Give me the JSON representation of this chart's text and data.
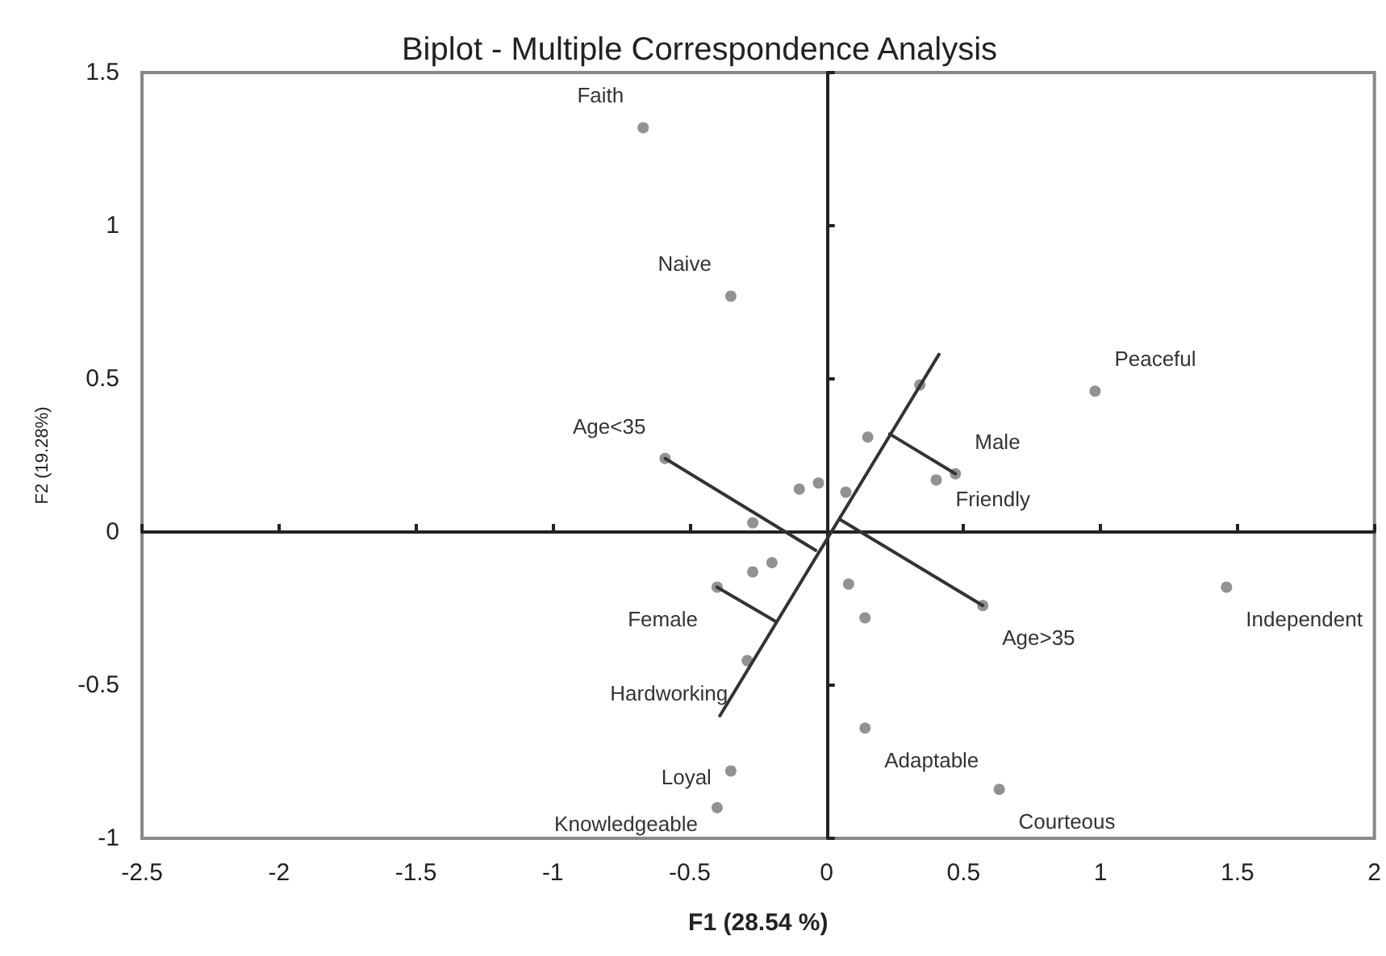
{
  "chart_data": {
    "type": "scatter",
    "title": "Biplot - Multiple Correspondence Analysis",
    "xlabel": "F1 (28.54 %)",
    "ylabel": "F2 (19.28%)",
    "xlim": [
      -2.5,
      2
    ],
    "ylim": [
      -1,
      1.5
    ],
    "xticks": [
      -2.5,
      -2,
      -1.5,
      -1,
      -0.5,
      0,
      0.5,
      1,
      1.5,
      2
    ],
    "yticks": [
      -1,
      -0.5,
      0,
      0.5,
      1,
      1.5
    ],
    "marker": "circle",
    "series": [
      {
        "color": "#777777",
        "x": [
          -0.67,
          -0.35,
          0.98,
          1.46,
          0.34,
          0.15,
          0.47,
          0.4,
          -0.59,
          -0.1,
          -0.03,
          0.07,
          -0.27,
          -0.27,
          -0.2,
          -0.4,
          0.08,
          0.14,
          0.57,
          -0.29,
          0.14,
          -0.35,
          -0.4,
          0.63
        ],
        "values": [
          1.32,
          0.77,
          0.46,
          -0.18,
          0.48,
          0.31,
          0.19,
          0.17,
          0.24,
          0.14,
          0.16,
          0.13,
          0.03,
          -0.13,
          -0.1,
          -0.18,
          -0.17,
          -0.28,
          -0.24,
          -0.42,
          -0.64,
          -0.78,
          -0.9,
          -0.84
        ]
      },
      {
        "type": "line",
        "color": "#333333",
        "marker": "none",
        "x": [
          -0.39,
          0.41
        ],
        "values": [
          -0.6,
          0.58
        ]
      },
      {
        "type": "line",
        "color": "#333333",
        "marker": "none",
        "x": [
          -0.59,
          -0.04
        ],
        "values": [
          0.24,
          -0.06
        ]
      },
      {
        "type": "line",
        "color": "#333333",
        "marker": "none",
        "x": [
          0.05,
          0.57
        ],
        "values": [
          0.04,
          -0.24
        ]
      },
      {
        "type": "line",
        "color": "#333333",
        "marker": "none",
        "x": [
          0.23,
          0.47
        ],
        "values": [
          0.32,
          0.19
        ]
      },
      {
        "type": "line",
        "color": "#333333",
        "marker": "none",
        "x": [
          -0.4,
          -0.19
        ],
        "values": [
          -0.18,
          -0.29
        ]
      }
    ],
    "annotations": [
      {
        "text": "Faith",
        "x": -0.67,
        "y": 1.32
      },
      {
        "text": "Naive",
        "x": -0.35,
        "y": 0.77
      },
      {
        "text": "Peaceful",
        "x": 0.98,
        "y": 0.46
      },
      {
        "text": "Age<35",
        "x": -0.59,
        "y": 0.24
      },
      {
        "text": "Male",
        "x": 0.47,
        "y": 0.19
      },
      {
        "text": "Friendly",
        "x": 0.4,
        "y": 0.17
      },
      {
        "text": "Independent",
        "x": 1.46,
        "y": -0.18
      },
      {
        "text": "Female",
        "x": -0.4,
        "y": -0.18
      },
      {
        "text": "Age>35",
        "x": 0.57,
        "y": -0.24
      },
      {
        "text": "Hardworking",
        "x": -0.29,
        "y": -0.42
      },
      {
        "text": "Adaptable",
        "x": 0.14,
        "y": -0.64
      },
      {
        "text": "Loyal",
        "x": -0.35,
        "y": -0.78
      },
      {
        "text": "Courteous",
        "x": 0.63,
        "y": -0.84
      },
      {
        "text": "Knowledgeable",
        "x": -0.4,
        "y": -0.9
      }
    ]
  }
}
